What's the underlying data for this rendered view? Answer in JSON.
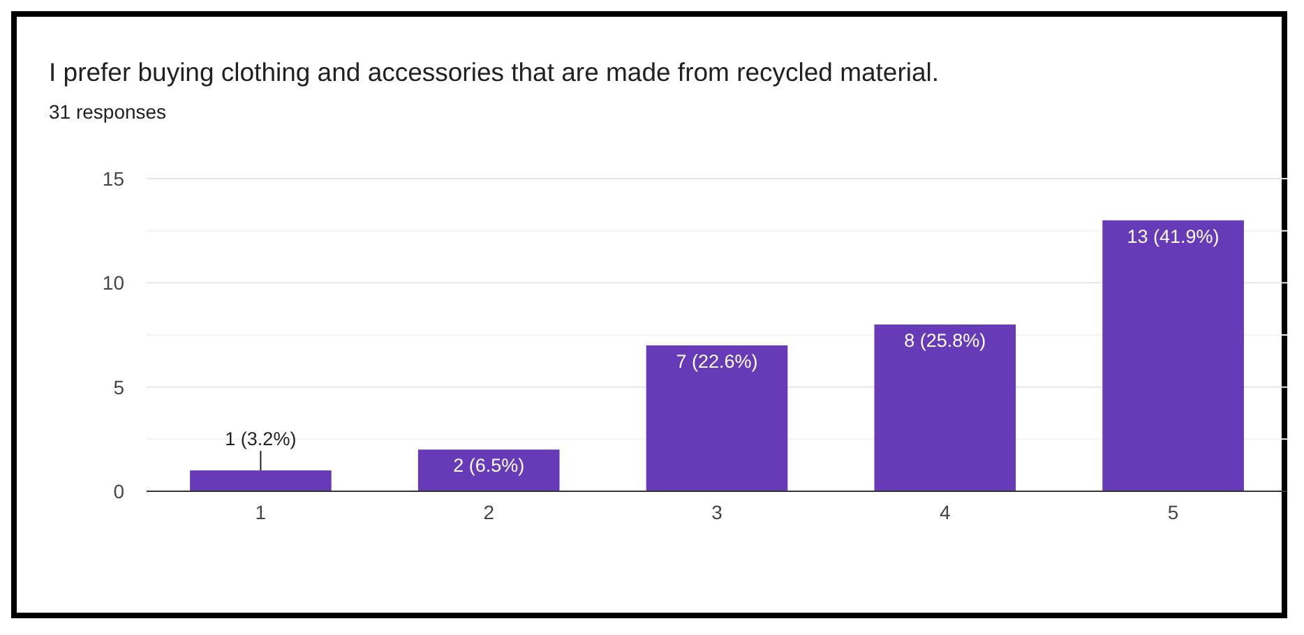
{
  "chart_data": {
    "type": "bar",
    "title": "I prefer buying clothing and accessories that are made from recycled material.",
    "subtitle": "31 responses",
    "categories": [
      "1",
      "2",
      "3",
      "4",
      "5"
    ],
    "values": [
      1,
      2,
      7,
      8,
      13
    ],
    "color": "#673ab7",
    "value_labels": [
      "1 (3.2%)",
      "2 (6.5%)",
      "7 (22.6%)",
      "8 (25.8%)",
      "13 (41.9%)"
    ],
    "ylim": [
      0,
      15
    ],
    "yticks": [
      0,
      {
        "value": 2.5,
        "label": null
      },
      5,
      {
        "value": 7.5,
        "label": null
      },
      10,
      {
        "value": 12.5,
        "label": null
      },
      15
    ],
    "grid": true
  }
}
